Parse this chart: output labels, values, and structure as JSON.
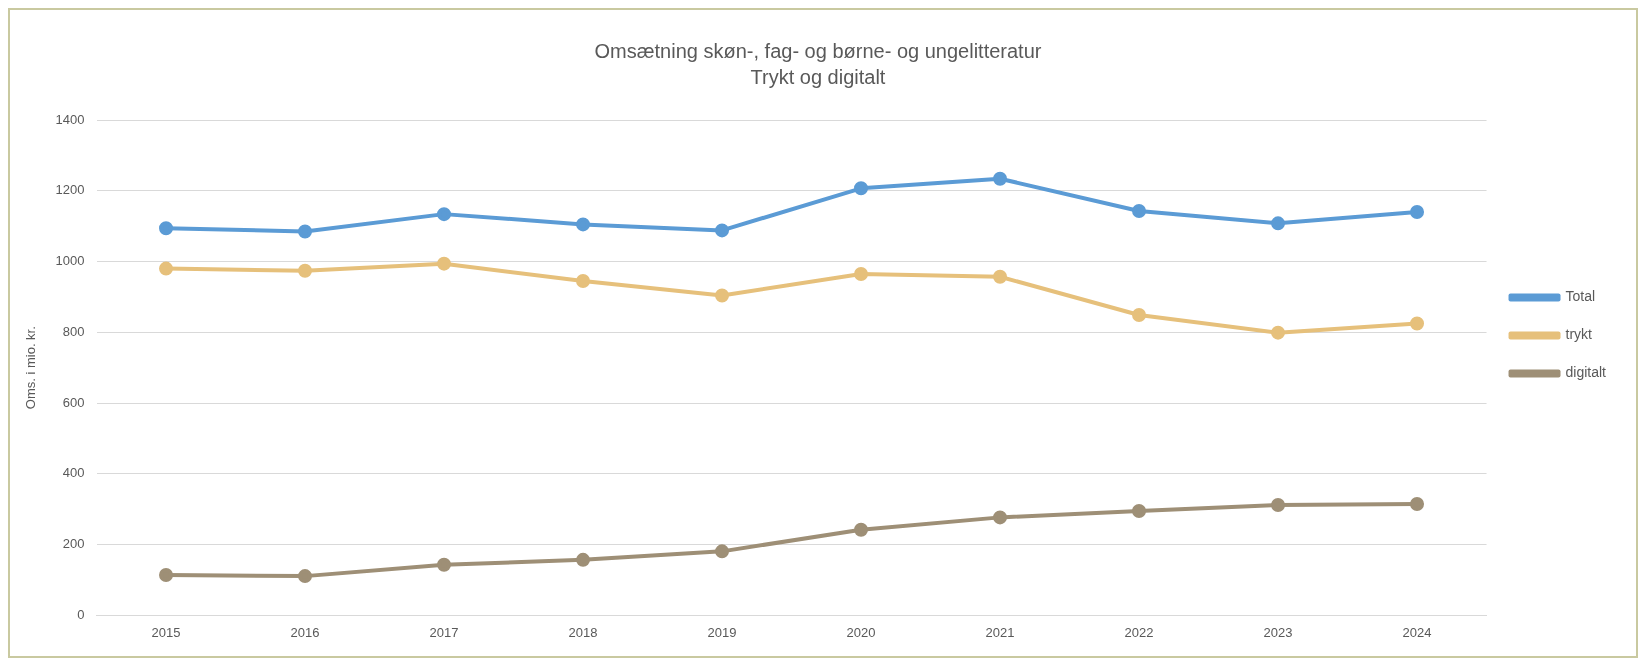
{
  "chart_data": {
    "type": "line",
    "title": "Omsætning skøn-, fag- og børne- og ungelitteratur",
    "subtitle": "Trykt og digitalt",
    "ylabel": "Oms. i mio. kr.",
    "categories": [
      "2015",
      "2016",
      "2017",
      "2018",
      "2019",
      "2020",
      "2021",
      "2022",
      "2023",
      "2024"
    ],
    "series": [
      {
        "name": "Total",
        "color": "#5b9bd5",
        "values": [
          1094,
          1085,
          1134,
          1105,
          1088,
          1207,
          1234,
          1143,
          1108,
          1140
        ]
      },
      {
        "name": "trykt",
        "color": "#e6c07b",
        "values": [
          980,
          974,
          994,
          945,
          904,
          965,
          957,
          849,
          799,
          825
        ]
      },
      {
        "name": "digitalt",
        "color": "#9e8f76",
        "values": [
          114,
          111,
          143,
          157,
          181,
          242,
          277,
          295,
          312,
          315
        ]
      }
    ],
    "ylim": [
      0,
      1400
    ],
    "yticks": [
      0,
      200,
      400,
      600,
      800,
      1000,
      1200,
      1400
    ],
    "grid": "y",
    "legend": "right",
    "marker": "circle",
    "line_style": "solid"
  }
}
